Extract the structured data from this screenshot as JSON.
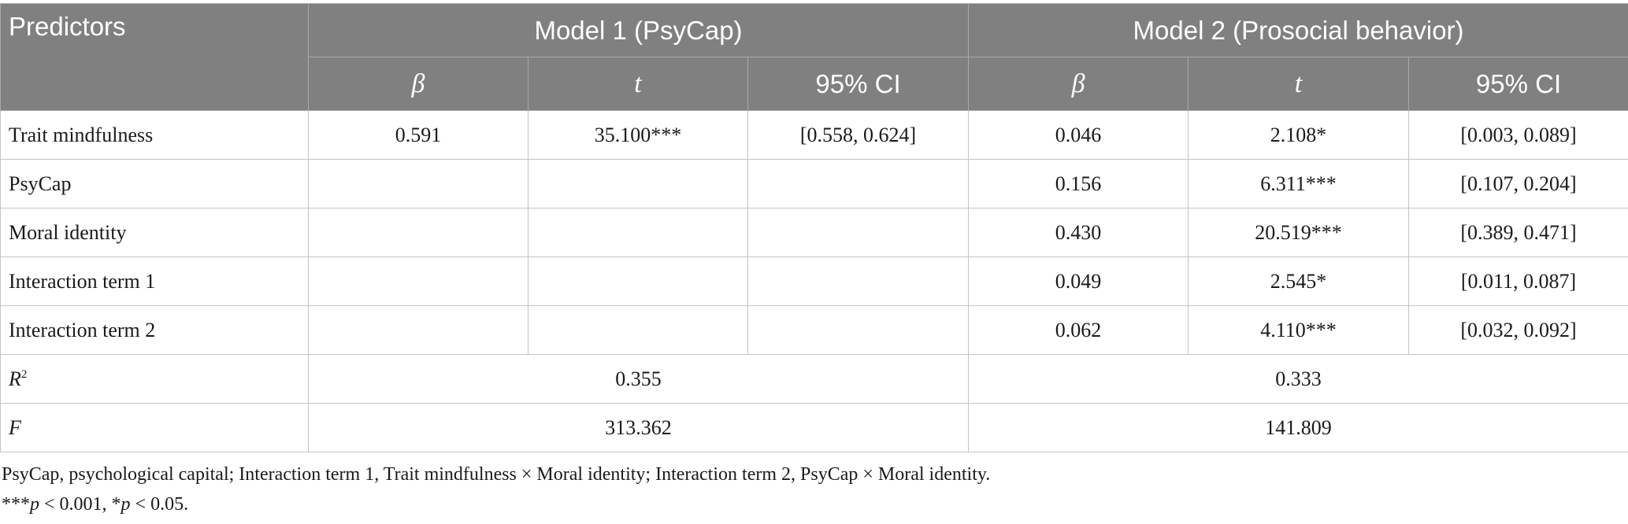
{
  "table": {
    "header": {
      "predictors": "Predictors",
      "model1": "Model 1 (PsyCap)",
      "model2": "Model 2 (Prosocial behavior)",
      "sub": [
        "β",
        "t",
        "95% CI",
        "β",
        "t",
        "95% CI"
      ]
    },
    "rows": [
      {
        "label": "Trait mindfulness",
        "cells": [
          "0.591",
          "35.100***",
          "[0.558, 0.624]",
          "0.046",
          "2.108*",
          "[0.003, 0.089]"
        ]
      },
      {
        "label": "PsyCap",
        "cells": [
          "",
          "",
          "",
          "0.156",
          "6.311***",
          "[0.107, 0.204]"
        ]
      },
      {
        "label": "Moral identity",
        "cells": [
          "",
          "",
          "",
          "0.430",
          "20.519***",
          "[0.389, 0.471]"
        ]
      },
      {
        "label": "Interaction term 1",
        "cells": [
          "",
          "",
          "",
          "0.049",
          "2.545*",
          "[0.011, 0.087]"
        ]
      },
      {
        "label": "Interaction term 2",
        "cells": [
          "",
          "",
          "",
          "0.062",
          "4.110***",
          "[0.032, 0.092]"
        ]
      }
    ],
    "summary": [
      {
        "label": "R",
        "label_sup": "2",
        "model1": "0.355",
        "model2": "0.333"
      },
      {
        "label": "F",
        "model1": "313.362",
        "model2": "141.809"
      }
    ]
  },
  "footnotes": {
    "line1": "PsyCap, psychological capital; Interaction term 1, Trait mindfulness × Moral identity; Interaction term 2, PsyCap × Moral identity.",
    "line2_stars1": "***",
    "line2_p1": "p",
    "line2_rest1": " < 0.001, *",
    "line2_p2": "p",
    "line2_rest2": " < 0.05."
  }
}
